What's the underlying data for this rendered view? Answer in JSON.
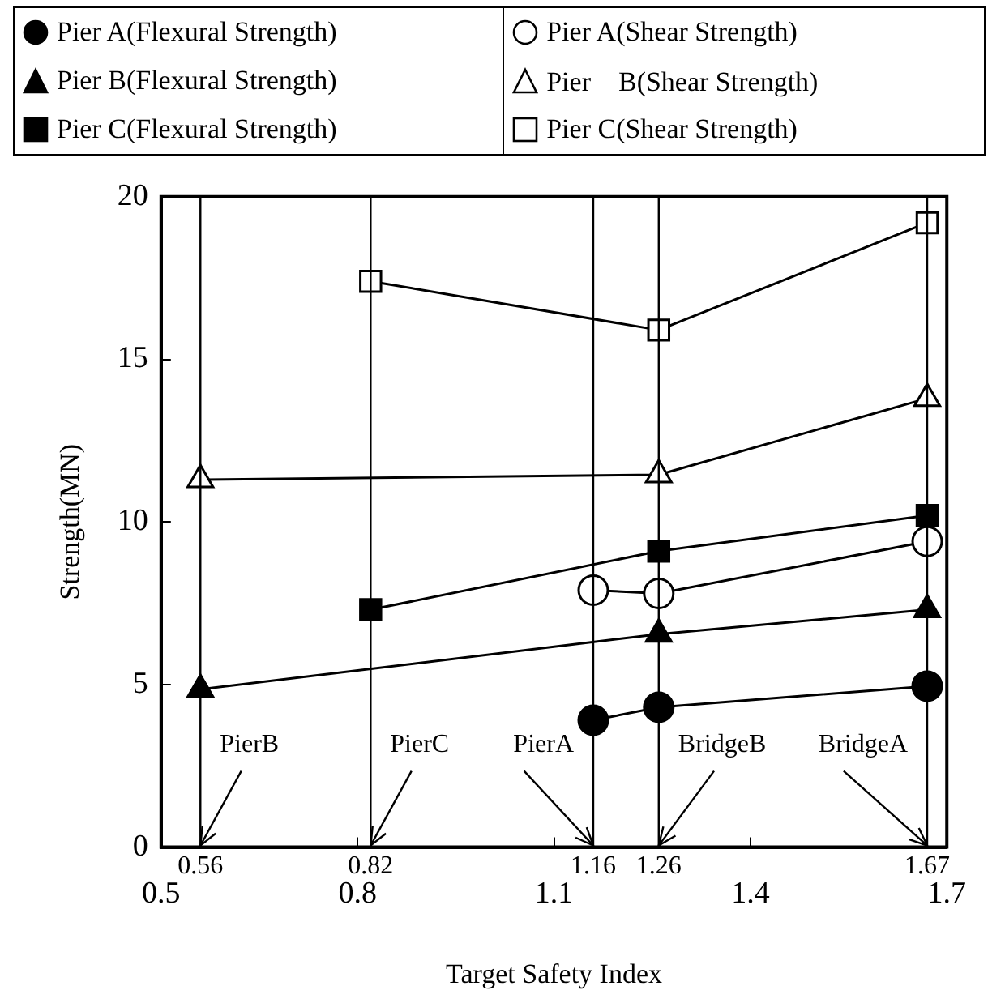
{
  "chart_data": {
    "type": "line",
    "xlabel": "Target Safety Index",
    "ylabel": "Strength(MN)",
    "xlim": [
      0.5,
      1.7
    ],
    "xticks": [
      0.5,
      0.8,
      1.1,
      1.4,
      1.7
    ],
    "ylim": [
      0,
      20
    ],
    "yticks": [
      0,
      5,
      10,
      15,
      20
    ],
    "legend": "top",
    "line_style": "solid",
    "series": [
      {
        "name": "Pier A(Flexural Strength)",
        "color": "#000000",
        "marker": "circle",
        "x": [
          1.16,
          1.26,
          1.67
        ],
        "values": [
          3.9,
          4.3,
          4.95
        ]
      },
      {
        "name": "Pier A(Shear Strength)",
        "color": "#000000",
        "marker": "circle-open",
        "x": [
          1.16,
          1.26,
          1.67
        ],
        "values": [
          7.9,
          7.8,
          9.4
        ]
      },
      {
        "name": "Pier B(Flexural Strength)",
        "color": "#000000",
        "marker": "triangle",
        "x": [
          0.56,
          1.26,
          1.67
        ],
        "values": [
          4.85,
          6.55,
          7.3
        ]
      },
      {
        "name": "Pier　B(Shear Strength)",
        "color": "#000000",
        "marker": "triangle-open",
        "x": [
          0.56,
          1.26,
          1.67
        ],
        "values": [
          11.3,
          11.45,
          13.8
        ]
      },
      {
        "name": "Pier C(Flexural Strength)",
        "color": "#000000",
        "marker": "square",
        "x": [
          0.82,
          1.26,
          1.67
        ],
        "values": [
          7.3,
          9.1,
          10.2
        ]
      },
      {
        "name": "Pier C(Shear Strength)",
        "color": "#000000",
        "marker": "square-open",
        "x": [
          0.82,
          1.26,
          1.67
        ],
        "values": [
          17.4,
          15.9,
          19.2
        ]
      }
    ],
    "ref_lines": [
      {
        "axis": "x",
        "value": 0.56,
        "label": "PierB",
        "color": "#000000"
      },
      {
        "axis": "x",
        "value": 0.82,
        "label": "PierC",
        "color": "#000000"
      },
      {
        "axis": "x",
        "value": 1.16,
        "label": "PierA",
        "color": "#000000"
      },
      {
        "axis": "x",
        "value": 1.26,
        "label": "BridgeB",
        "color": "#000000"
      },
      {
        "axis": "x",
        "value": 1.67,
        "label": "BridgeA",
        "color": "#000000"
      }
    ],
    "annotations": [
      {
        "text": "0.56",
        "x": 0.56,
        "y": 0
      },
      {
        "text": "0.82",
        "x": 0.82,
        "y": 0
      },
      {
        "text": "1.16",
        "x": 1.16,
        "y": 0
      },
      {
        "text": "1.26",
        "x": 1.26,
        "y": 0
      },
      {
        "text": "1.67",
        "x": 1.67,
        "y": 0
      }
    ]
  }
}
